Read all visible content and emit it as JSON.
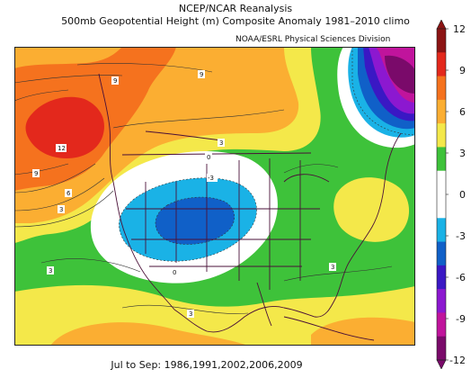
{
  "header": {
    "title_line1": "NCEP/NCAR Reanalysis",
    "title_line2": "500mb Geopotential Height (m) Composite Anomaly 1981–2010 climo",
    "credit": "NOAA/ESRL Physical Sciences Division"
  },
  "footer": {
    "period": "Jul to Sep: 1986,1991,2002,2006,2009"
  },
  "map": {
    "variable": "500mb Geopotential Height (m) Composite Anomaly",
    "contour_labels": [
      "9",
      "9",
      "12",
      "9",
      "6",
      "3",
      "3",
      "0",
      "-3",
      "0",
      "3",
      "3",
      "3"
    ]
  },
  "colorbar": {
    "tick_labels": [
      "12",
      "9",
      "6",
      "3",
      "0",
      "-3",
      "-6",
      "-9",
      "-12"
    ],
    "colors": [
      "#8c1414",
      "#e3281c",
      "#f5721e",
      "#fbae32",
      "#f4e84a",
      "#3ec23a",
      "#ffffff",
      "#ffffff",
      "#1ab2e6",
      "#1060c8",
      "#3a18c4",
      "#8c18d0",
      "#c0149c",
      "#7a0a6a"
    ]
  }
}
